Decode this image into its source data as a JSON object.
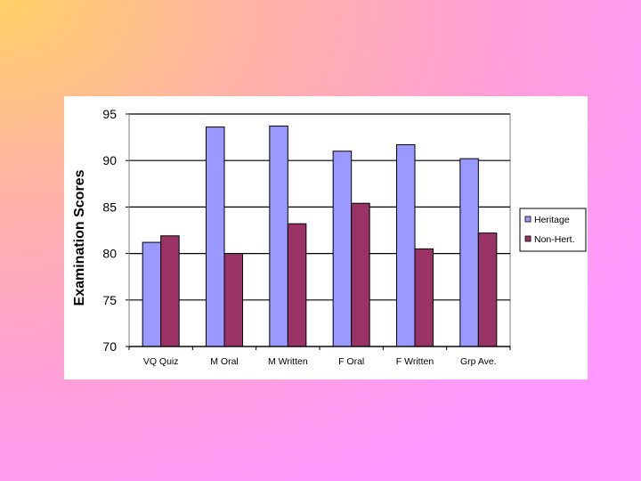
{
  "chart_data": {
    "type": "bar",
    "title": "",
    "xlabel": "",
    "ylabel": "Examination Scores",
    "ylim": [
      70,
      95
    ],
    "yticks": [
      70,
      75,
      80,
      85,
      90,
      95
    ],
    "grid": true,
    "legend_position": "right",
    "categories": [
      "VQ Quiz",
      "M Oral",
      "M Written",
      "F Oral",
      "F Written",
      "Grp Ave."
    ],
    "series": [
      {
        "name": "Heritage",
        "color": "#9999ff",
        "values": [
          81.2,
          93.6,
          93.7,
          91.0,
          91.7,
          90.2
        ]
      },
      {
        "name": "Non-Hert.",
        "color": "#993366",
        "values": [
          81.9,
          80.0,
          83.2,
          85.4,
          80.5,
          82.2
        ]
      }
    ]
  }
}
